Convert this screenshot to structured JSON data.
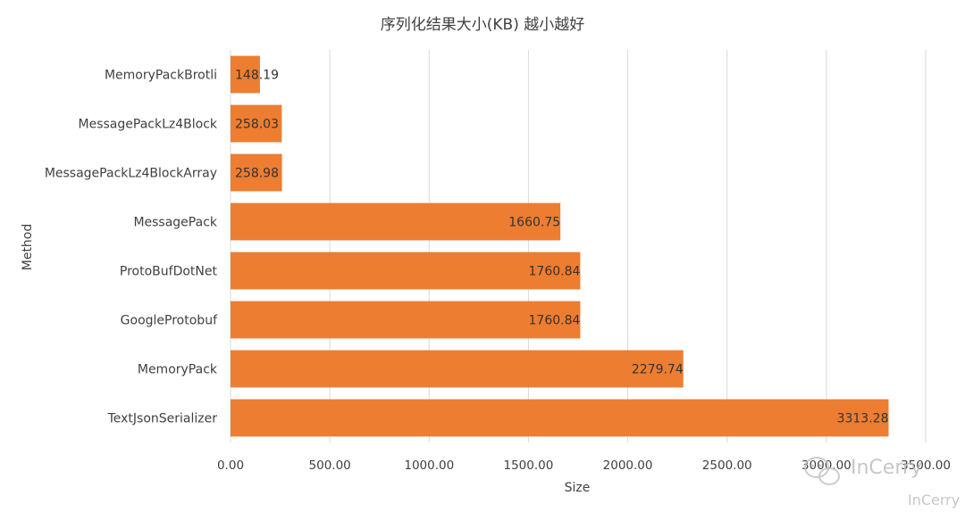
{
  "chart_data": {
    "type": "bar",
    "orientation": "horizontal",
    "title": "序列化结果大小(KB) 越小越好",
    "xlabel": "Size",
    "ylabel": "Method",
    "categories": [
      "MemoryPackBrotli",
      "MessagePackLz4Block",
      "MessagePackLz4BlockArray",
      "MessagePack",
      "ProtoBufDotNet",
      "GoogleProtobuf",
      "MemoryPack",
      "TextJsonSerializer"
    ],
    "values": [
      148.19,
      258.03,
      258.98,
      1660.75,
      1760.84,
      1760.84,
      2279.74,
      3313.28
    ],
    "value_labels": [
      "148.19",
      "258.03",
      "258.98",
      "1660.75",
      "1760.84",
      "1760.84",
      "2279.74",
      "3313.28"
    ],
    "xlim": [
      0,
      3500
    ],
    "x_ticks": [
      "0.00",
      "500.00",
      "1000.00",
      "1500.00",
      "2000.00",
      "2500.00",
      "3000.00",
      "3500.00"
    ],
    "grid": true,
    "bar_color": "#ED7D31"
  },
  "watermark": {
    "center_text": "InCerry",
    "corner_text": "InCerry"
  }
}
